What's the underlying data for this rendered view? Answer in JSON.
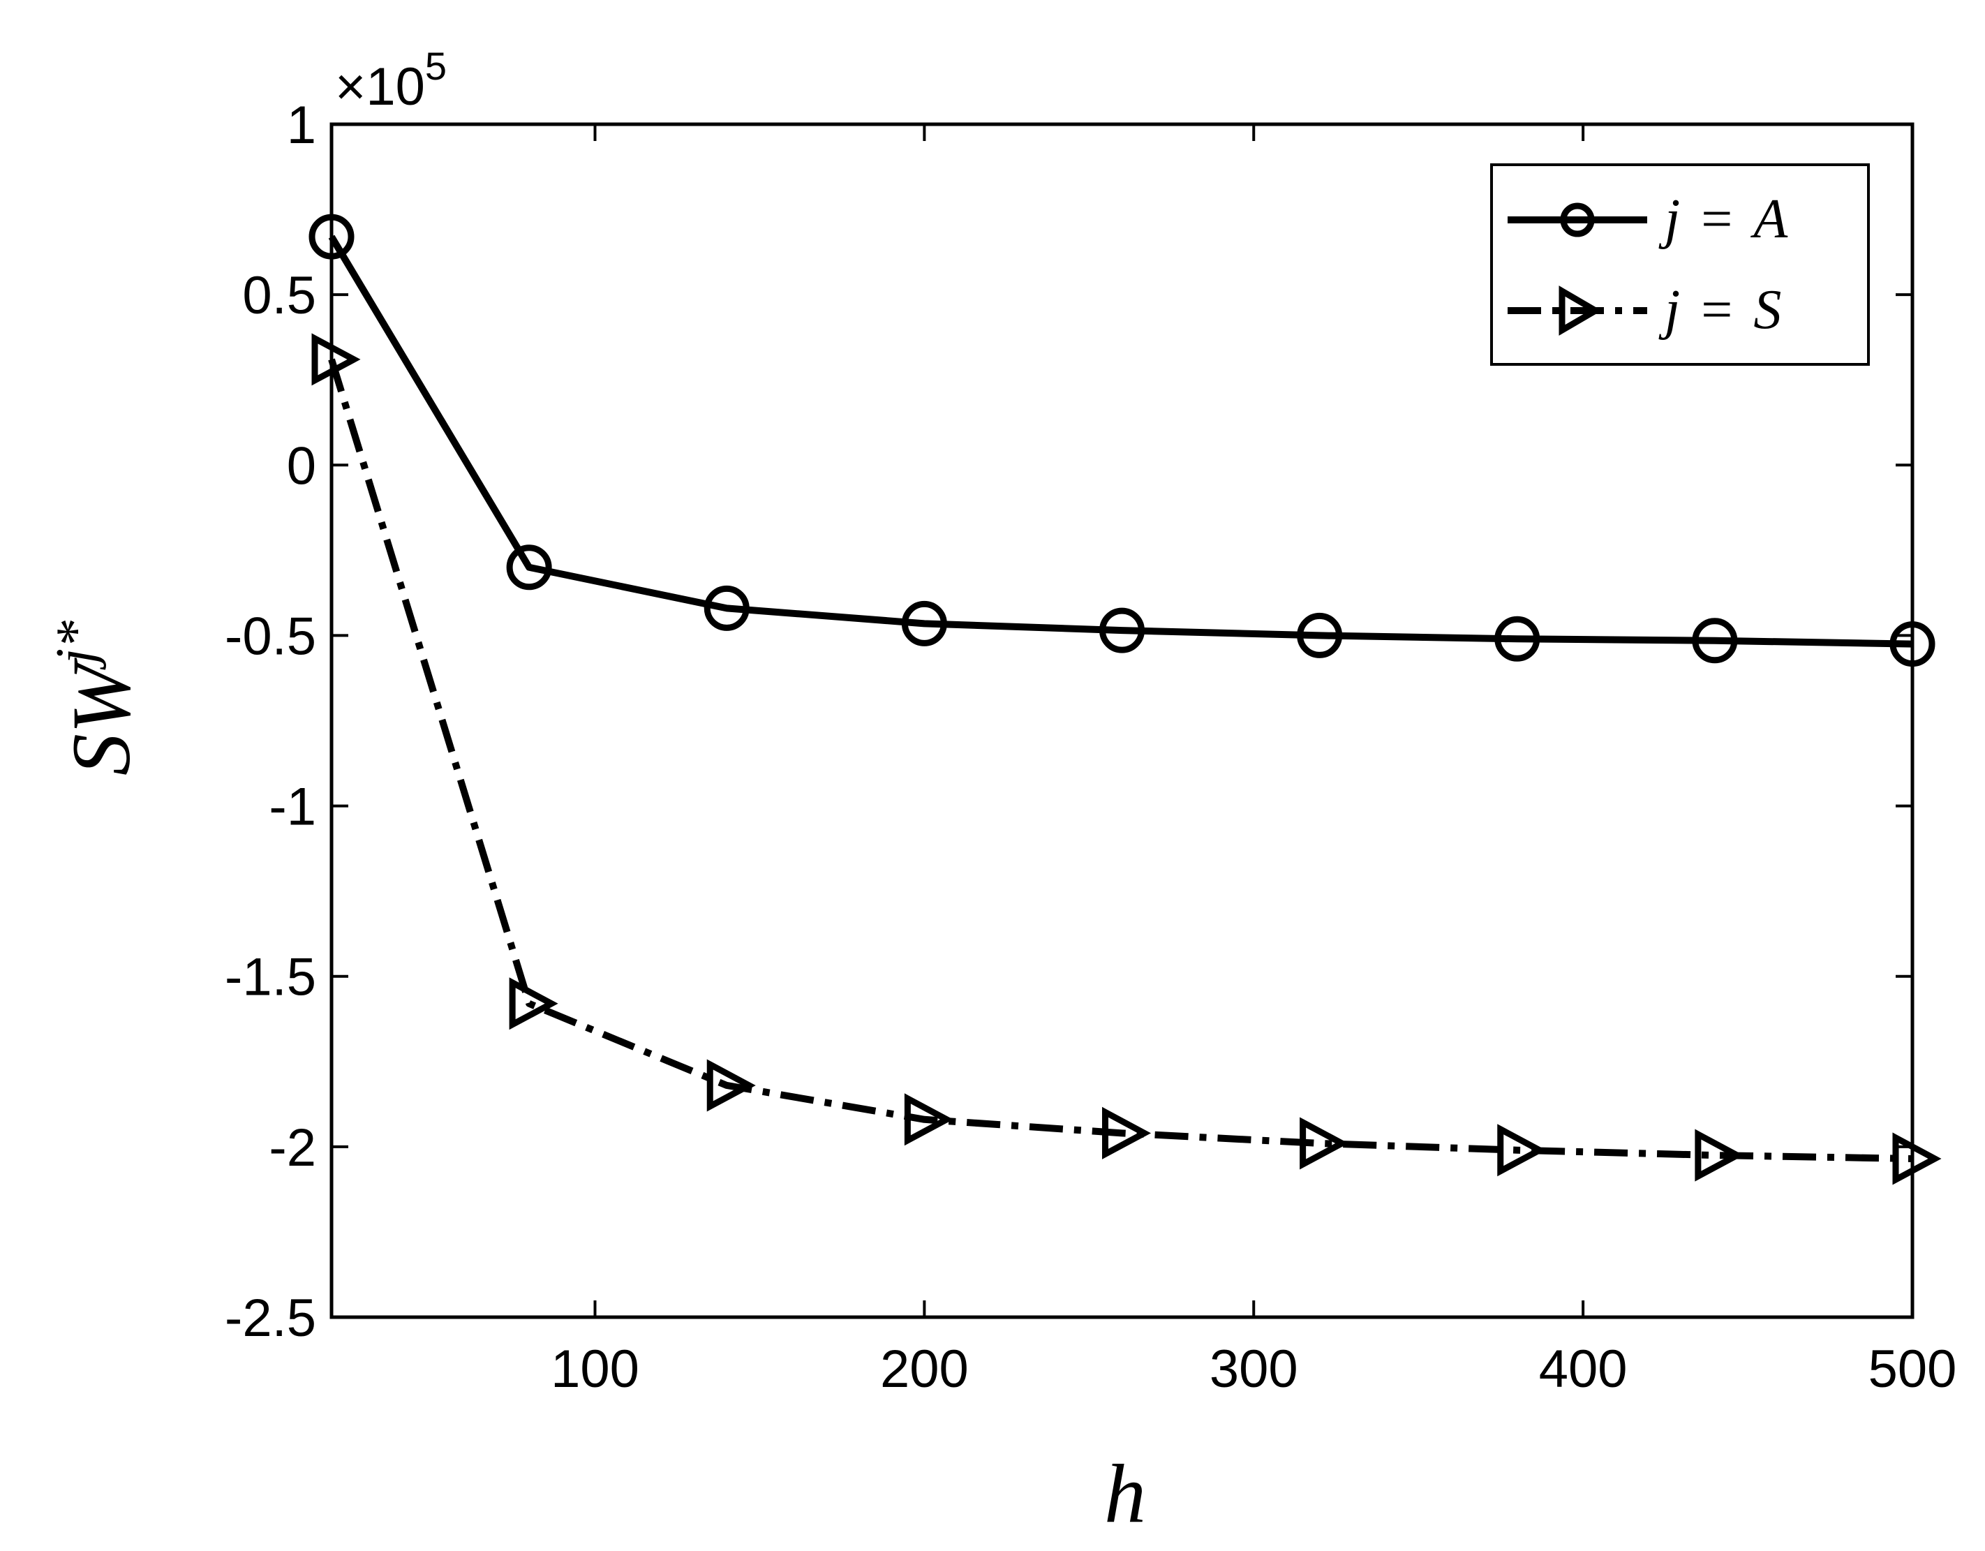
{
  "chart_data": {
    "type": "line",
    "x": [
      20,
      80,
      140,
      200,
      260,
      320,
      380,
      440,
      500
    ],
    "series": [
      {
        "name": "j = A",
        "legend_var": "j",
        "legend_eq": "=",
        "legend_val": "A",
        "marker": "circle",
        "line_style": "solid",
        "values": [
          0.67,
          -0.3,
          -0.42,
          -0.465,
          -0.485,
          -0.5,
          -0.51,
          -0.515,
          -0.525
        ]
      },
      {
        "name": "j = S",
        "legend_var": "j",
        "legend_eq": "=",
        "legend_val": "S",
        "marker": "triangle-right",
        "line_style": "dash-dot",
        "values": [
          0.31,
          -1.58,
          -1.82,
          -1.92,
          -1.96,
          -1.99,
          -2.01,
          -2.025,
          -2.035
        ]
      }
    ],
    "xlabel": "h",
    "ylabel_main": "SW",
    "ylabel_sup": "j*",
    "y_exponent_prefix": "×10",
    "y_exponent_power": "5",
    "xlim": [
      20,
      500
    ],
    "ylim": [
      -2.5,
      1
    ],
    "xticks": [
      100,
      200,
      300,
      400,
      500
    ],
    "xtick_labels": [
      "100",
      "200",
      "300",
      "400",
      "500"
    ],
    "yticks": [
      -2.5,
      -2,
      -1.5,
      -1,
      -0.5,
      0,
      0.5,
      1
    ],
    "ytick_labels": [
      "-2.5",
      "-2",
      "-1.5",
      "-1",
      "-0.5",
      "0",
      "0.5",
      "1"
    ],
    "grid": false,
    "legend_position": "top-right",
    "color": "#000000"
  }
}
